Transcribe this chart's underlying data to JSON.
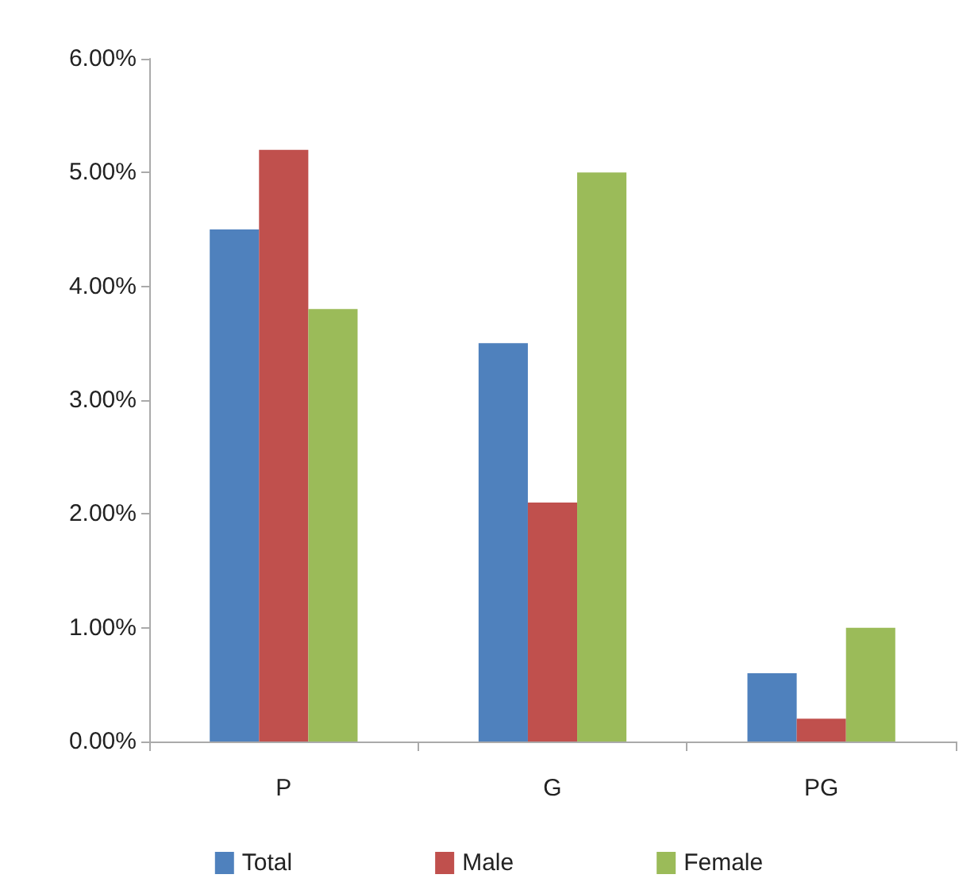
{
  "chart_data": {
    "type": "bar",
    "categories": [
      "P",
      "G",
      "PG"
    ],
    "series": [
      {
        "name": "Total",
        "color": "#4f81bd",
        "values": [
          4.5,
          3.5,
          0.6
        ]
      },
      {
        "name": "Male",
        "color": "#c0504d",
        "values": [
          5.2,
          2.1,
          0.2
        ]
      },
      {
        "name": "Female",
        "color": "#9bbb59",
        "values": [
          3.8,
          5.0,
          1.0
        ]
      }
    ],
    "ylim": [
      0,
      6
    ],
    "yticks": [
      {
        "value": 0,
        "label": "0.00%"
      },
      {
        "value": 1,
        "label": "1.00%"
      },
      {
        "value": 2,
        "label": "2.00%"
      },
      {
        "value": 3,
        "label": "3.00%"
      },
      {
        "value": 4,
        "label": "4.00%"
      },
      {
        "value": 5,
        "label": "5.00%"
      },
      {
        "value": 6,
        "label": "6.00%"
      }
    ],
    "grid": false,
    "legend": "bottom"
  }
}
